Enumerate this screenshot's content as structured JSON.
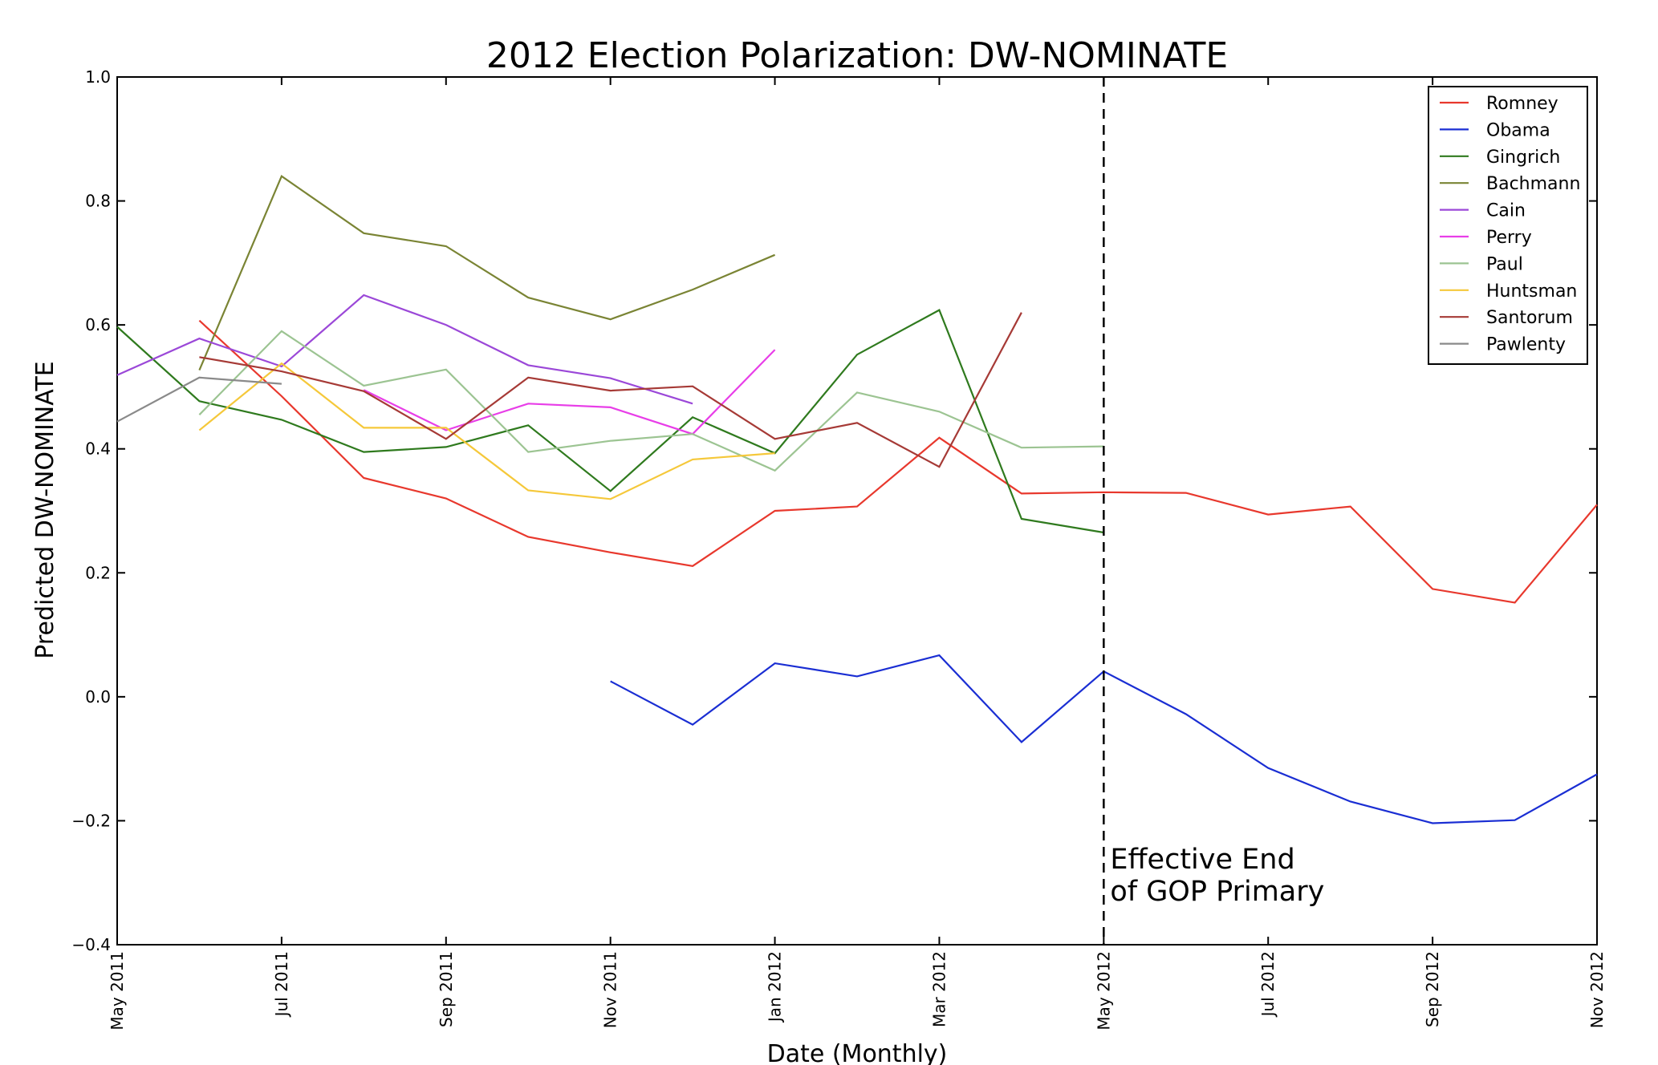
{
  "chart_data": {
    "type": "line",
    "title": "2012 Election Polarization: DW-NOMINATE",
    "xlabel": "Date (Monthly)",
    "ylabel": "Predicted DW-NOMINATE",
    "ylim": [
      -0.4,
      1.0
    ],
    "yticks": [
      1.0,
      0.8,
      0.6,
      0.4,
      0.2,
      0.0,
      -0.2,
      -0.4
    ],
    "ytick_labels": [
      "1.0",
      "0.8",
      "0.6",
      "0.4",
      "0.2",
      "0.0",
      "−0.2",
      "−0.4"
    ],
    "x": [
      "2011-05",
      "2011-06",
      "2011-07",
      "2011-08",
      "2011-09",
      "2011-10",
      "2011-11",
      "2011-12",
      "2012-01",
      "2012-02",
      "2012-03",
      "2012-04",
      "2012-05",
      "2012-06",
      "2012-07",
      "2012-08",
      "2012-09",
      "2012-10",
      "2012-11"
    ],
    "xticks": [
      "2011-05",
      "2011-07",
      "2011-09",
      "2011-11",
      "2012-01",
      "2012-03",
      "2012-05",
      "2012-07",
      "2012-09",
      "2012-11"
    ],
    "xtick_labels": [
      "May 2011",
      "Jul 2011",
      "Sep 2011",
      "Nov 2011",
      "Jan 2012",
      "Mar 2012",
      "May 2012",
      "Jul 2012",
      "Sep 2012",
      "Nov 2012"
    ],
    "grid": false,
    "legend_position": "top-right",
    "series": [
      {
        "name": "Romney",
        "color": "#e8382d",
        "values": [
          null,
          0.607,
          0.485,
          0.353,
          0.32,
          0.258,
          0.233,
          0.211,
          0.3,
          0.307,
          0.418,
          0.328,
          0.33,
          0.329,
          0.294,
          0.307,
          0.174,
          0.152,
          0.31
        ]
      },
      {
        "name": "Obama",
        "color": "#1a2ed3",
        "values": [
          null,
          null,
          null,
          null,
          null,
          null,
          0.025,
          -0.045,
          0.054,
          0.033,
          0.067,
          -0.073,
          0.041,
          -0.028,
          -0.115,
          -0.169,
          -0.204,
          -0.199,
          -0.125
        ]
      },
      {
        "name": "Gingrich",
        "color": "#2f7a1e",
        "values": [
          0.597,
          0.477,
          0.447,
          0.395,
          0.403,
          0.438,
          0.332,
          0.451,
          0.393,
          0.552,
          0.624,
          0.287,
          0.265,
          null,
          null,
          null,
          null,
          null,
          null
        ]
      },
      {
        "name": "Bachmann",
        "color": "#7a8434",
        "values": [
          null,
          0.527,
          0.84,
          0.748,
          0.727,
          0.644,
          0.609,
          0.657,
          0.713,
          null,
          null,
          null,
          null,
          null,
          null,
          null,
          null,
          null,
          null
        ]
      },
      {
        "name": "Cain",
        "color": "#9b48d8",
        "values": [
          0.519,
          0.578,
          0.533,
          0.648,
          0.6,
          0.535,
          0.514,
          0.473,
          null,
          null,
          null,
          null,
          null,
          null,
          null,
          null,
          null,
          null,
          null
        ]
      },
      {
        "name": "Perry",
        "color": "#e83ee8",
        "values": [
          null,
          null,
          null,
          0.495,
          0.43,
          0.473,
          0.467,
          0.424,
          0.56,
          null,
          null,
          null,
          null,
          null,
          null,
          null,
          null,
          null,
          null
        ]
      },
      {
        "name": "Paul",
        "color": "#9cc492",
        "values": [
          null,
          0.455,
          0.59,
          0.502,
          0.528,
          0.395,
          0.413,
          0.424,
          0.365,
          0.491,
          0.46,
          0.402,
          0.404,
          null,
          null,
          null,
          null,
          null,
          null
        ]
      },
      {
        "name": "Huntsman",
        "color": "#f5c83a",
        "values": [
          null,
          0.43,
          0.538,
          0.434,
          0.434,
          0.333,
          0.319,
          0.383,
          0.393,
          null,
          null,
          null,
          null,
          null,
          null,
          null,
          null,
          null,
          null
        ]
      },
      {
        "name": "Santorum",
        "color": "#a63a36",
        "values": [
          null,
          0.548,
          0.525,
          0.493,
          0.416,
          0.515,
          0.494,
          0.501,
          0.416,
          0.442,
          0.371,
          0.62,
          null,
          null,
          null,
          null,
          null,
          null,
          null
        ]
      },
      {
        "name": "Pawlenty",
        "color": "#8a8a8a",
        "values": [
          0.444,
          0.515,
          0.505,
          null,
          null,
          null,
          null,
          null,
          null,
          null,
          null,
          null,
          null,
          null,
          null,
          null,
          null,
          null,
          null
        ]
      }
    ],
    "annotation": {
      "x": "2012-05",
      "line_style": "dashed",
      "line1": "Effective End",
      "line2": "of GOP Primary"
    }
  }
}
